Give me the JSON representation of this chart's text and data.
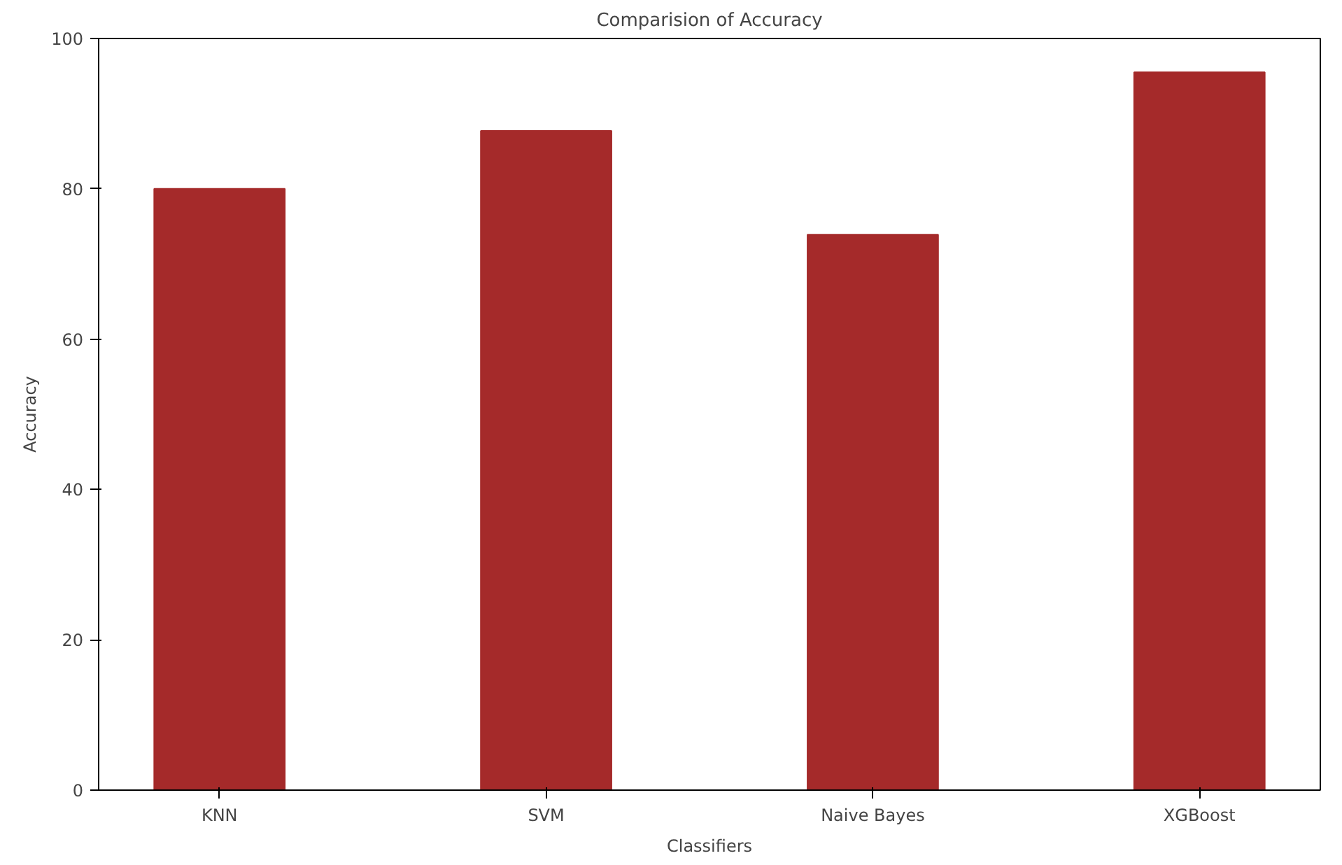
{
  "chart_data": {
    "type": "bar",
    "title": "Comparision of Accuracy",
    "xlabel": "Classifiers",
    "ylabel": "Accuracy",
    "categories": [
      "KNN",
      "SVM",
      "Naive Bayes",
      "XGBoost"
    ],
    "values": [
      80.0,
      87.7,
      73.9,
      95.5
    ],
    "color": "#a52a2a",
    "ylim": [
      0,
      100
    ],
    "yticks": [
      0,
      20,
      40,
      60,
      80,
      100
    ],
    "grid": false
  }
}
